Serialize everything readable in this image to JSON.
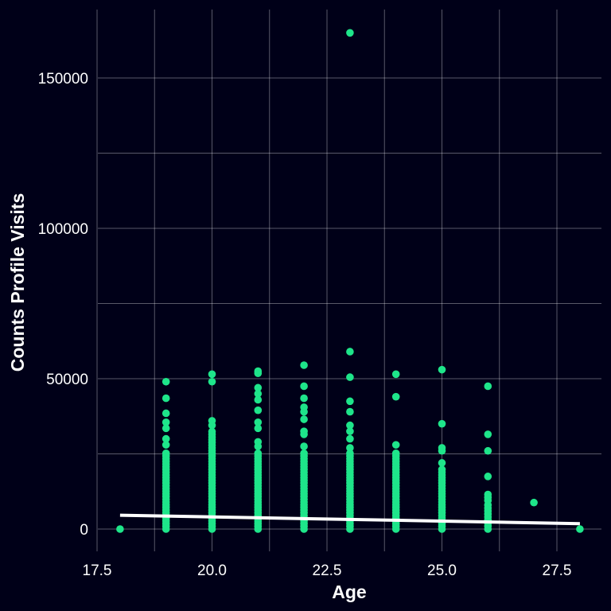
{
  "colors": {
    "background": "#000018",
    "grid": "#ffffff",
    "points": "#1ee58a",
    "trendline": "#ffffff",
    "text": "#ffffff"
  },
  "chart_data": {
    "type": "scatter",
    "title": "",
    "xlabel": "Age",
    "ylabel": "Counts Profile Visits",
    "xlim": [
      17.5,
      28.2
    ],
    "ylim": [
      -8000,
      172000
    ],
    "grid": true,
    "legend": "none",
    "x_ticks": [
      17.5,
      20.0,
      22.5,
      25.0,
      27.5
    ],
    "x_tick_labels": [
      "17.5",
      "20.0",
      "22.5",
      "25.0",
      "27.5"
    ],
    "x_minor_gridlines": [
      18.75,
      21.25,
      23.75,
      26.25
    ],
    "y_ticks": [
      0,
      50000,
      100000,
      150000
    ],
    "y_tick_labels": [
      "0",
      "50000",
      "100000",
      "150000"
    ],
    "y_minor_gridlines": [
      25000,
      75000,
      125000
    ],
    "points": [
      [
        18,
        0
      ],
      [
        19,
        49000
      ],
      [
        19,
        43500
      ],
      [
        19,
        38500
      ],
      [
        19,
        35500
      ],
      [
        19,
        33500
      ],
      [
        19,
        30000
      ],
      [
        19,
        28000
      ],
      [
        20,
        51500
      ],
      [
        20,
        49000
      ],
      [
        20,
        36000
      ],
      [
        20,
        34500
      ],
      [
        21,
        52500
      ],
      [
        21,
        51800
      ],
      [
        21,
        47000
      ],
      [
        21,
        45000
      ],
      [
        21,
        43000
      ],
      [
        21,
        39500
      ],
      [
        21,
        35500
      ],
      [
        21,
        33500
      ],
      [
        21,
        29000
      ],
      [
        21,
        27500
      ],
      [
        22,
        54500
      ],
      [
        22,
        47500
      ],
      [
        22,
        43500
      ],
      [
        22,
        40500
      ],
      [
        22,
        39000
      ],
      [
        22,
        36500
      ],
      [
        22,
        32500
      ],
      [
        22,
        31500
      ],
      [
        22,
        27500
      ],
      [
        23,
        165000
      ],
      [
        23,
        59000
      ],
      [
        23,
        50500
      ],
      [
        23,
        42500
      ],
      [
        23,
        39000
      ],
      [
        23,
        34500
      ],
      [
        23,
        32500
      ],
      [
        23,
        30000
      ],
      [
        23,
        27000
      ],
      [
        24,
        51500
      ],
      [
        24,
        44000
      ],
      [
        24,
        28000
      ],
      [
        25,
        53000
      ],
      [
        25,
        35000
      ],
      [
        25,
        27000
      ],
      [
        25,
        26000
      ],
      [
        25,
        22000
      ],
      [
        26,
        47500
      ],
      [
        26,
        31500
      ],
      [
        26,
        26000
      ],
      [
        26,
        17500
      ],
      [
        26,
        11500
      ],
      [
        26,
        10500
      ],
      [
        26,
        9500
      ],
      [
        26,
        8000
      ],
      [
        26,
        7000
      ],
      [
        26,
        6000
      ],
      [
        26,
        5000
      ],
      [
        26,
        4000
      ],
      [
        26,
        3000
      ],
      [
        26,
        2000
      ],
      [
        26,
        1000
      ],
      [
        26,
        0
      ],
      [
        27,
        8800
      ],
      [
        28,
        0
      ]
    ],
    "dense_columns": [
      {
        "x": 19,
        "from": 0,
        "to": 26000
      },
      {
        "x": 20,
        "from": 0,
        "to": 33000
      },
      {
        "x": 21,
        "from": 0,
        "to": 26000
      },
      {
        "x": 22,
        "from": 0,
        "to": 26000
      },
      {
        "x": 23,
        "from": 0,
        "to": 26000
      },
      {
        "x": 24,
        "from": 0,
        "to": 26000
      },
      {
        "x": 25,
        "from": 0,
        "to": 20000
      }
    ],
    "trendline": {
      "x": [
        18,
        28
      ],
      "y": [
        4600,
        1800
      ]
    }
  }
}
